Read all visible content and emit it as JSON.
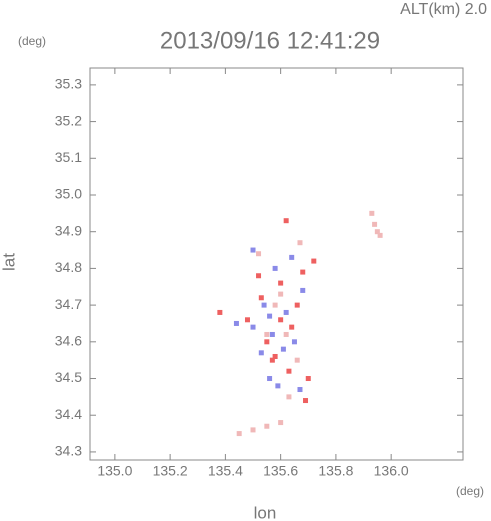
{
  "chart_data": {
    "type": "scatter",
    "title": "2013/09/16 12:41:29",
    "subtitle": "ALT(km) 2.0",
    "y_unit": "(deg)",
    "x_unit": "(deg)",
    "x_label": "lon",
    "y_label": "lat",
    "xlim": [
      134.91,
      136.26
    ],
    "ylim": [
      34.278,
      35.346
    ],
    "xticks": [
      {
        "value": 135,
        "label": "135.0"
      },
      135.2,
      135.4,
      135.6,
      135.8,
      {
        "value": 136,
        "label": "136.0"
      }
    ],
    "yticks": [
      34.3,
      34.4,
      34.5,
      34.6,
      34.7,
      34.8,
      34.9,
      {
        "value": 35,
        "label": "35.0"
      },
      35.1,
      35.2,
      35.3
    ],
    "series": [
      {
        "color": "#f0b8b8",
        "x": [
          135.93,
          135.95,
          135.94,
          135.96,
          135.45,
          135.5,
          135.55,
          135.6,
          135.67,
          135.52,
          135.6,
          135.58,
          135.62,
          135.55,
          135.66,
          135.63
        ],
        "y": [
          34.95,
          34.9,
          34.92,
          34.89,
          34.35,
          34.36,
          34.37,
          34.38,
          34.87,
          34.84,
          34.73,
          34.7,
          34.62,
          34.62,
          34.55,
          34.45
        ]
      },
      {
        "color": "#8a8ae8",
        "x": [
          135.44,
          135.5,
          135.54,
          135.57,
          135.61,
          135.65,
          135.59,
          135.56,
          135.67,
          135.58,
          135.64,
          135.5,
          135.68,
          135.62,
          135.53,
          135.56
        ],
        "y": [
          34.65,
          34.64,
          34.7,
          34.62,
          34.58,
          34.6,
          34.48,
          34.5,
          34.47,
          34.8,
          34.83,
          34.85,
          34.74,
          34.68,
          34.57,
          34.67
        ]
      },
      {
        "color": "#ee6060",
        "x": [
          135.62,
          135.72,
          135.52,
          135.68,
          135.6,
          135.64,
          135.55,
          135.58,
          135.63,
          135.7,
          135.69,
          135.48,
          135.38,
          135.57,
          135.53,
          135.66,
          135.6
        ],
        "y": [
          34.93,
          34.82,
          34.78,
          34.79,
          34.66,
          34.64,
          34.6,
          34.56,
          34.52,
          34.5,
          34.44,
          34.66,
          34.68,
          34.55,
          34.72,
          34.7,
          34.76
        ]
      }
    ]
  }
}
